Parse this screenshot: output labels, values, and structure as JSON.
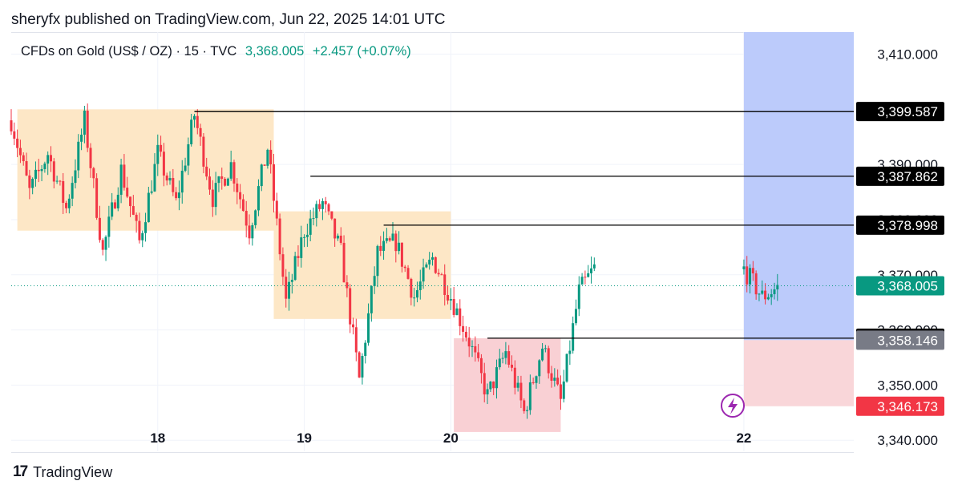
{
  "header": {
    "published": "sheryfx published on TradingView.com, Jun 22, 2025 14:01 UTC",
    "symbol": "CFDs on Gold (US$ / OZ) · 15 · TVC",
    "last_price": "3,368.005",
    "change": "+2.457 (+0.07%)"
  },
  "footer": {
    "brand": "TradingView"
  },
  "colors": {
    "up": "#089981",
    "down": "#f23645",
    "zone_orange": "#fde7c6",
    "zone_red": "#f9d0d4",
    "target": "#bccbfb",
    "stop": "#f9d6d9"
  },
  "chart_data": {
    "type": "candlestick",
    "x_ticks": [
      "18",
      "19",
      "20",
      "22"
    ],
    "x_range": [
      "2025-06-17T00:00",
      "2025-06-22T18:00"
    ],
    "ylim": [
      3338,
      3414
    ],
    "y_ticks": [
      "3,410.000",
      "3,390.000",
      "3,380.000",
      "3,370.000",
      "3,360.000",
      "3,350.000",
      "3,340.000"
    ],
    "price_labels": [
      {
        "text": "3,399.587",
        "value": 3399.587,
        "style": "black"
      },
      {
        "text": "3,387.862",
        "value": 3387.862,
        "style": "black"
      },
      {
        "text": "3,378.998",
        "value": 3378.998,
        "style": "black"
      },
      {
        "text": "3,368.005",
        "value": 3368.005,
        "style": "last"
      },
      {
        "text": "3,358.505",
        "value": 3358.505,
        "style": "black"
      },
      {
        "text": "3,358.146",
        "value": 3358.146,
        "style": "gray"
      },
      {
        "text": "3,346.173",
        "value": 3346.173,
        "style": "red"
      }
    ],
    "horizontal_levels": [
      {
        "value": 3399.587,
        "from": "2025-06-18T06:00"
      },
      {
        "value": 3387.862,
        "from": "2025-06-19T01:00"
      },
      {
        "value": 3378.998,
        "from": "2025-06-19T13:00"
      },
      {
        "value": 3358.505,
        "from": "2025-06-20T06:00"
      }
    ],
    "zones": [
      {
        "kind": "supply",
        "from": "2025-06-17T01:00",
        "to": "2025-06-18T19:00",
        "top": 3400,
        "bottom": 3378
      },
      {
        "kind": "supply",
        "from": "2025-06-18T19:00",
        "to": "2025-06-20T00:00",
        "top": 3381.5,
        "bottom": 3362
      },
      {
        "kind": "demand",
        "from": "2025-06-20T00:30",
        "to": "2025-06-20T18:00",
        "top": 3358.5,
        "bottom": 3341.5
      }
    ],
    "position": {
      "from": "2025-06-22T00:00",
      "to": "2025-06-22T18:00",
      "target": 3414,
      "entry": 3358.146,
      "stop": 3346.173
    },
    "last_price": 3368.005,
    "path": [
      [
        "2025-06-17T00:00",
        3398
      ],
      [
        "2025-06-17T03:00",
        3385
      ],
      [
        "2025-06-17T06:00",
        3392
      ],
      [
        "2025-06-17T09:00",
        3382
      ],
      [
        "2025-06-17T12:00",
        3398
      ],
      [
        "2025-06-17T15:00",
        3374
      ],
      [
        "2025-06-17T18:00",
        3389
      ],
      [
        "2025-06-17T21:00",
        3376
      ],
      [
        "2025-06-18T00:00",
        3392
      ],
      [
        "2025-06-18T03:00",
        3383
      ],
      [
        "2025-06-18T06:00",
        3399
      ],
      [
        "2025-06-18T09:00",
        3384
      ],
      [
        "2025-06-18T12:00",
        3390
      ],
      [
        "2025-06-18T15:00",
        3378
      ],
      [
        "2025-06-18T18:00",
        3393
      ],
      [
        "2025-06-18T21:00",
        3365
      ],
      [
        "2025-06-19T00:00",
        3378
      ],
      [
        "2025-06-19T03:00",
        3383
      ],
      [
        "2025-06-19T06:00",
        3374
      ],
      [
        "2025-06-19T09:00",
        3351
      ],
      [
        "2025-06-19T12:00",
        3374
      ],
      [
        "2025-06-19T15:00",
        3376
      ],
      [
        "2025-06-19T18:00",
        3366
      ],
      [
        "2025-06-19T21:00",
        3373
      ],
      [
        "2025-06-20T00:00",
        3366
      ],
      [
        "2025-06-20T03:00",
        3358
      ],
      [
        "2025-06-20T06:00",
        3348
      ],
      [
        "2025-06-20T09:00",
        3356
      ],
      [
        "2025-06-20T12:00",
        3345
      ],
      [
        "2025-06-20T15:00",
        3357
      ],
      [
        "2025-06-20T18:00",
        3347
      ],
      [
        "2025-06-20T21:00",
        3367
      ],
      [
        "2025-06-21T00:00",
        3372
      ],
      [
        "2025-06-22T00:00",
        3371
      ],
      [
        "2025-06-22T03:00",
        3366
      ],
      [
        "2025-06-22T06:00",
        3368
      ]
    ],
    "gaps": [
      [
        "2025-06-21T00:00",
        "2025-06-22T00:00"
      ]
    ]
  }
}
